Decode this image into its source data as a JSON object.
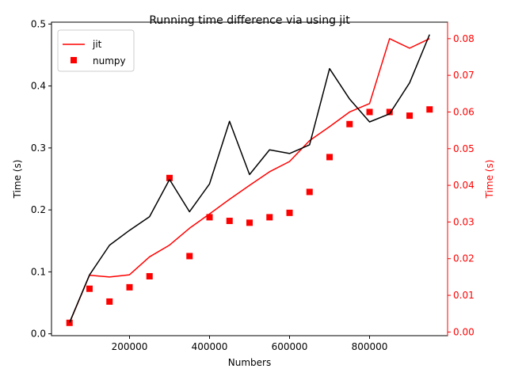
{
  "chart_data": {
    "type": "line",
    "title": "Running time difference via using jit",
    "xlabel": "Numbers",
    "ylabel_left": "Time (s)",
    "ylabel_right": "Time (s)",
    "xlim": [
      5000,
      995000
    ],
    "ylim_left": [
      -0.003,
      0.503
    ],
    "ylim_right": [
      -0.001,
      0.0845
    ],
    "x_ticks": [
      200000,
      400000,
      600000,
      800000
    ],
    "x_tick_labels": [
      "200000",
      "400000",
      "600000",
      "800000"
    ],
    "y_left_ticks": [
      0.0,
      0.1,
      0.2,
      0.3,
      0.4,
      0.5
    ],
    "y_left_tick_labels": [
      "0.0",
      "0.1",
      "0.2",
      "0.3",
      "0.4",
      "0.5"
    ],
    "y_right_ticks": [
      0.0,
      0.01,
      0.02,
      0.03,
      0.04,
      0.05,
      0.06,
      0.07,
      0.08
    ],
    "y_right_tick_labels": [
      "0.00",
      "0.01",
      "0.02",
      "0.03",
      "0.04",
      "0.05",
      "0.06",
      "0.07",
      "0.08"
    ],
    "legend_position": "top-left",
    "x": [
      50000,
      100000,
      150000,
      200000,
      250000,
      300000,
      350000,
      400000,
      450000,
      500000,
      550000,
      600000,
      650000,
      700000,
      750000,
      800000,
      850000,
      900000,
      950000
    ],
    "series": [
      {
        "name": "jit",
        "axis": "right",
        "style": "line",
        "color": "#ff0000",
        "values": [
          0.0025,
          0.0155,
          0.015,
          0.0156,
          0.0205,
          0.0237,
          0.0283,
          0.0322,
          0.0362,
          0.04,
          0.0437,
          0.0465,
          0.0522,
          0.056,
          0.06,
          0.0623,
          0.08,
          0.0774,
          0.08
        ]
      },
      {
        "name": "numpy",
        "axis": "right",
        "style": "marker",
        "color": "#ff0000",
        "values": [
          0.0025,
          0.0118,
          0.0083,
          0.0122,
          0.0152,
          0.042,
          0.0207,
          0.0313,
          0.0303,
          0.0298,
          0.0313,
          0.0325,
          0.0382,
          0.0477,
          0.0567,
          0.06,
          0.06,
          0.059,
          0.0607
        ]
      },
      {
        "name": "",
        "axis": "left",
        "style": "line",
        "color": "#000000",
        "values": [
          0.018,
          0.095,
          0.143,
          0.167,
          0.189,
          0.249,
          0.197,
          0.242,
          0.343,
          0.257,
          0.297,
          0.291,
          0.305,
          0.428,
          0.379,
          0.342,
          0.355,
          0.405,
          0.483
        ]
      }
    ]
  }
}
